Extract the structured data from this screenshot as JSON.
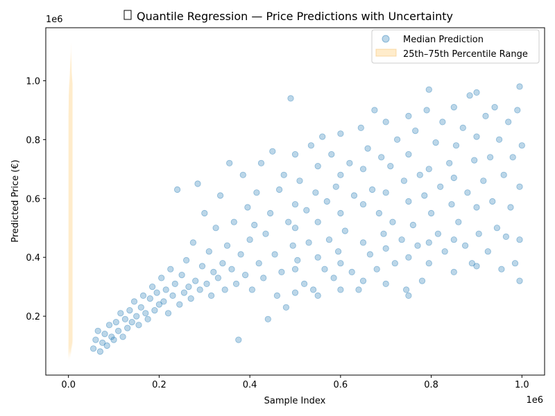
{
  "chart_data": {
    "type": "scatter",
    "title": "Quantile Regression — Price Predictions with Uncertainty",
    "title_icon": "chart-icon",
    "xlabel": "Sample Index",
    "ylabel": "Predicted Price (€)",
    "x_offset_label": "1e6",
    "y_offset_label": "1e6",
    "xlim": [
      -50000,
      1050000
    ],
    "ylim": [
      0.0,
      1.18
    ],
    "x_ticks": [
      0.0,
      0.2,
      0.4,
      0.6,
      0.8,
      1.0
    ],
    "x_tick_labels": [
      "0.0",
      "0.2",
      "0.4",
      "0.6",
      "0.8",
      "1.0"
    ],
    "y_ticks": [
      0.2,
      0.4,
      0.6,
      0.8,
      1.0
    ],
    "y_tick_labels": [
      "0.2",
      "0.4",
      "0.6",
      "0.8",
      "1.0"
    ],
    "grid": false,
    "legend_position": "top-right",
    "legend": [
      {
        "label": "Median Prediction",
        "kind": "marker",
        "color": "#1f77b4"
      },
      {
        "label": "25th–75th Percentile Range",
        "kind": "patch",
        "color": "#ffdfa8"
      }
    ],
    "series": [
      {
        "name": "Median Prediction",
        "kind": "scatter",
        "color": "#1f77b4",
        "alpha": 0.3,
        "points": [
          [
            55000,
            0.09
          ],
          [
            60000,
            0.12
          ],
          [
            65000,
            0.15
          ],
          [
            70000,
            0.08
          ],
          [
            75000,
            0.11
          ],
          [
            80000,
            0.14
          ],
          [
            85000,
            0.1
          ],
          [
            90000,
            0.17
          ],
          [
            95000,
            0.13
          ],
          [
            100000,
            0.12
          ],
          [
            105000,
            0.18
          ],
          [
            110000,
            0.15
          ],
          [
            115000,
            0.21
          ],
          [
            120000,
            0.13
          ],
          [
            125000,
            0.19
          ],
          [
            130000,
            0.16
          ],
          [
            135000,
            0.22
          ],
          [
            140000,
            0.18
          ],
          [
            145000,
            0.25
          ],
          [
            150000,
            0.2
          ],
          [
            155000,
            0.17
          ],
          [
            160000,
            0.23
          ],
          [
            165000,
            0.27
          ],
          [
            170000,
            0.21
          ],
          [
            175000,
            0.19
          ],
          [
            180000,
            0.26
          ],
          [
            185000,
            0.3
          ],
          [
            190000,
            0.22
          ],
          [
            195000,
            0.28
          ],
          [
            200000,
            0.24
          ],
          [
            205000,
            0.33
          ],
          [
            210000,
            0.25
          ],
          [
            215000,
            0.29
          ],
          [
            220000,
            0.21
          ],
          [
            225000,
            0.36
          ],
          [
            230000,
            0.27
          ],
          [
            235000,
            0.31
          ],
          [
            240000,
            0.63
          ],
          [
            245000,
            0.24
          ],
          [
            250000,
            0.34
          ],
          [
            255000,
            0.28
          ],
          [
            260000,
            0.39
          ],
          [
            265000,
            0.3
          ],
          [
            270000,
            0.26
          ],
          [
            275000,
            0.45
          ],
          [
            280000,
            0.32
          ],
          [
            285000,
            0.65
          ],
          [
            290000,
            0.29
          ],
          [
            295000,
            0.37
          ],
          [
            300000,
            0.55
          ],
          [
            305000,
            0.31
          ],
          [
            310000,
            0.42
          ],
          [
            315000,
            0.27
          ],
          [
            320000,
            0.35
          ],
          [
            325000,
            0.5
          ],
          [
            330000,
            0.33
          ],
          [
            335000,
            0.61
          ],
          [
            340000,
            0.38
          ],
          [
            345000,
            0.29
          ],
          [
            350000,
            0.44
          ],
          [
            355000,
            0.72
          ],
          [
            360000,
            0.36
          ],
          [
            365000,
            0.52
          ],
          [
            370000,
            0.31
          ],
          [
            375000,
            0.12
          ],
          [
            380000,
            0.41
          ],
          [
            385000,
            0.68
          ],
          [
            390000,
            0.34
          ],
          [
            395000,
            0.57
          ],
          [
            400000,
            0.46
          ],
          [
            405000,
            0.29
          ],
          [
            410000,
            0.51
          ],
          [
            415000,
            0.62
          ],
          [
            420000,
            0.38
          ],
          [
            425000,
            0.72
          ],
          [
            430000,
            0.33
          ],
          [
            435000,
            0.48
          ],
          [
            440000,
            0.19
          ],
          [
            445000,
            0.55
          ],
          [
            450000,
            0.76
          ],
          [
            455000,
            0.41
          ],
          [
            460000,
            0.27
          ],
          [
            465000,
            0.63
          ],
          [
            470000,
            0.35
          ],
          [
            475000,
            0.68
          ],
          [
            480000,
            0.23
          ],
          [
            485000,
            0.52
          ],
          [
            490000,
            0.94
          ],
          [
            495000,
            0.44
          ],
          [
            500000,
            0.75
          ],
          [
            500000,
            0.36
          ],
          [
            500000,
            0.58
          ],
          [
            500000,
            0.28
          ],
          [
            500000,
            0.5
          ],
          [
            505000,
            0.39
          ],
          [
            510000,
            0.66
          ],
          [
            520000,
            0.31
          ],
          [
            525000,
            0.56
          ],
          [
            530000,
            0.45
          ],
          [
            535000,
            0.78
          ],
          [
            540000,
            0.29
          ],
          [
            545000,
            0.62
          ],
          [
            550000,
            0.4
          ],
          [
            550000,
            0.71
          ],
          [
            550000,
            0.27
          ],
          [
            550000,
            0.52
          ],
          [
            560000,
            0.81
          ],
          [
            565000,
            0.36
          ],
          [
            570000,
            0.59
          ],
          [
            575000,
            0.46
          ],
          [
            580000,
            0.75
          ],
          [
            585000,
            0.33
          ],
          [
            590000,
            0.64
          ],
          [
            595000,
            0.42
          ],
          [
            600000,
            0.82
          ],
          [
            600000,
            0.29
          ],
          [
            600000,
            0.55
          ],
          [
            600000,
            0.68
          ],
          [
            600000,
            0.38
          ],
          [
            610000,
            0.49
          ],
          [
            620000,
            0.72
          ],
          [
            625000,
            0.35
          ],
          [
            630000,
            0.61
          ],
          [
            640000,
            0.29
          ],
          [
            645000,
            0.84
          ],
          [
            650000,
            0.45
          ],
          [
            650000,
            0.7
          ],
          [
            650000,
            0.32
          ],
          [
            650000,
            0.58
          ],
          [
            660000,
            0.77
          ],
          [
            665000,
            0.41
          ],
          [
            670000,
            0.63
          ],
          [
            675000,
            0.9
          ],
          [
            680000,
            0.36
          ],
          [
            685000,
            0.55
          ],
          [
            690000,
            0.74
          ],
          [
            695000,
            0.48
          ],
          [
            700000,
            0.86
          ],
          [
            700000,
            0.31
          ],
          [
            700000,
            0.62
          ],
          [
            700000,
            0.43
          ],
          [
            710000,
            0.71
          ],
          [
            715000,
            0.52
          ],
          [
            720000,
            0.38
          ],
          [
            725000,
            0.8
          ],
          [
            735000,
            0.46
          ],
          [
            740000,
            0.66
          ],
          [
            745000,
            0.29
          ],
          [
            750000,
            0.88
          ],
          [
            750000,
            0.4
          ],
          [
            750000,
            0.59
          ],
          [
            750000,
            0.75
          ],
          [
            750000,
            0.27
          ],
          [
            760000,
            0.51
          ],
          [
            765000,
            0.83
          ],
          [
            770000,
            0.44
          ],
          [
            775000,
            0.68
          ],
          [
            780000,
            0.32
          ],
          [
            785000,
            0.61
          ],
          [
            790000,
            0.9
          ],
          [
            795000,
            0.97
          ],
          [
            795000,
            0.45
          ],
          [
            795000,
            0.7
          ],
          [
            795000,
            0.38
          ],
          [
            800000,
            0.55
          ],
          [
            810000,
            0.79
          ],
          [
            815000,
            0.48
          ],
          [
            820000,
            0.64
          ],
          [
            825000,
            0.86
          ],
          [
            830000,
            0.42
          ],
          [
            840000,
            0.72
          ],
          [
            845000,
            0.58
          ],
          [
            850000,
            0.35
          ],
          [
            850000,
            0.91
          ],
          [
            850000,
            0.46
          ],
          [
            850000,
            0.67
          ],
          [
            855000,
            0.78
          ],
          [
            860000,
            0.52
          ],
          [
            870000,
            0.84
          ],
          [
            875000,
            0.44
          ],
          [
            880000,
            0.62
          ],
          [
            885000,
            0.95
          ],
          [
            890000,
            0.38
          ],
          [
            895000,
            0.73
          ],
          [
            900000,
            0.96
          ],
          [
            900000,
            0.57
          ],
          [
            900000,
            0.37
          ],
          [
            900000,
            0.81
          ],
          [
            905000,
            0.48
          ],
          [
            915000,
            0.66
          ],
          [
            920000,
            0.88
          ],
          [
            925000,
            0.42
          ],
          [
            930000,
            0.74
          ],
          [
            935000,
            0.59
          ],
          [
            940000,
            0.91
          ],
          [
            945000,
            0.5
          ],
          [
            950000,
            0.8
          ],
          [
            955000,
            0.36
          ],
          [
            960000,
            0.68
          ],
          [
            965000,
            0.47
          ],
          [
            970000,
            0.86
          ],
          [
            975000,
            0.57
          ],
          [
            980000,
            0.74
          ],
          [
            985000,
            0.38
          ],
          [
            990000,
            0.9
          ],
          [
            995000,
            0.98
          ],
          [
            995000,
            0.32
          ],
          [
            995000,
            0.64
          ],
          [
            995000,
            0.46
          ],
          [
            1000000,
            0.78
          ]
        ]
      },
      {
        "name": "25th–75th Percentile Range",
        "kind": "band",
        "color": "#ffdfa8",
        "alpha": 0.6,
        "x": [
          0,
          500,
          1000,
          1500,
          2000,
          2500,
          3000,
          3500,
          4000,
          4500,
          5000,
          5500,
          6000,
          6500,
          7000,
          8000,
          9000
        ],
        "lower": [
          0.07,
          0.05,
          0.09,
          0.06,
          0.08,
          0.05,
          0.1,
          0.07,
          0.09,
          0.06,
          0.08,
          0.07,
          0.1,
          0.08,
          0.11,
          0.09,
          0.12
        ],
        "upper": [
          0.88,
          0.92,
          1.0,
          0.95,
          1.02,
          0.98,
          1.05,
          1.0,
          1.08,
          1.04,
          1.1,
          1.06,
          1.13,
          1.07,
          1.03,
          1.01,
          0.99
        ]
      }
    ]
  }
}
